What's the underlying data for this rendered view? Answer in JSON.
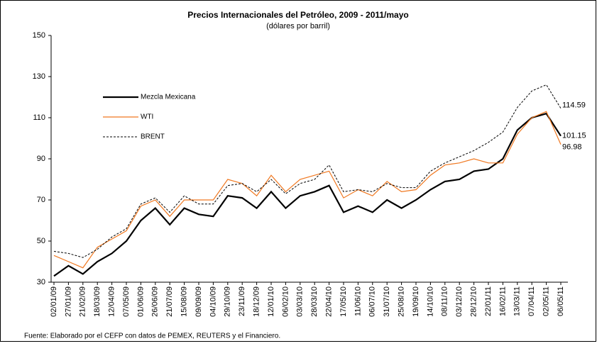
{
  "chart_data": {
    "type": "line",
    "title": "Precios Internacionales del Petróleo, 2009 - 2011/mayo",
    "subtitle": "(dólares por barril)",
    "footnote": "Fuente: Elaborado por el CEFP con datos de PEMEX, REUTERS y el Financiero.",
    "categories": [
      "02/01/09",
      "27/01/09",
      "21/02/09",
      "18/03/09",
      "12/04/09",
      "07/05/09",
      "01/06/09",
      "26/06/09",
      "21/07/09",
      "15/08/09",
      "09/09/09",
      "04/10/09",
      "29/10/09",
      "23/11/09",
      "18/12/09",
      "12/01/10",
      "06/02/10",
      "03/03/10",
      "28/03/10",
      "22/04/10",
      "17/05/10",
      "11/06/10",
      "06/07/10",
      "31/07/10",
      "25/08/10",
      "19/09/10",
      "14/10/10",
      "08/11/10",
      "03/12/10",
      "28/12/10",
      "22/01/11",
      "16/02/11",
      "13/03/11",
      "07/04/11",
      "02/05/11",
      "06/05/11"
    ],
    "series": [
      {
        "name": "Mezcla Mexicana",
        "color": "#000000",
        "values": [
          33,
          38,
          34,
          40,
          44,
          50,
          60,
          66,
          58,
          66,
          63,
          62,
          72,
          71,
          66,
          74,
          66,
          72,
          74,
          77,
          64,
          67,
          64,
          70,
          66,
          70,
          75,
          79,
          80,
          84,
          85,
          90,
          104,
          110,
          112,
          101.15
        ]
      },
      {
        "name": "WTI",
        "color": "#f07820",
        "values": [
          43,
          40,
          37,
          47,
          51,
          55,
          67,
          70,
          62,
          70,
          70,
          70,
          80,
          78,
          72,
          82,
          74,
          80,
          82,
          84,
          71,
          75,
          72,
          79,
          74,
          75,
          82,
          87,
          88,
          90,
          88,
          88,
          102,
          110,
          113,
          96.98
        ]
      },
      {
        "name": "BRENT",
        "color": "#000000",
        "values": [
          45,
          44,
          42,
          46,
          52,
          56,
          68,
          71,
          64,
          72,
          68,
          68,
          77,
          78,
          74,
          80,
          73,
          78,
          80,
          87,
          74,
          75,
          74,
          78,
          76,
          76,
          84,
          88,
          91,
          94,
          98,
          103,
          115,
          123,
          126,
          114.59
        ]
      }
    ],
    "ylim": [
      30,
      150
    ],
    "yticks": [
      30,
      50,
      70,
      90,
      110,
      130,
      150
    ]
  }
}
